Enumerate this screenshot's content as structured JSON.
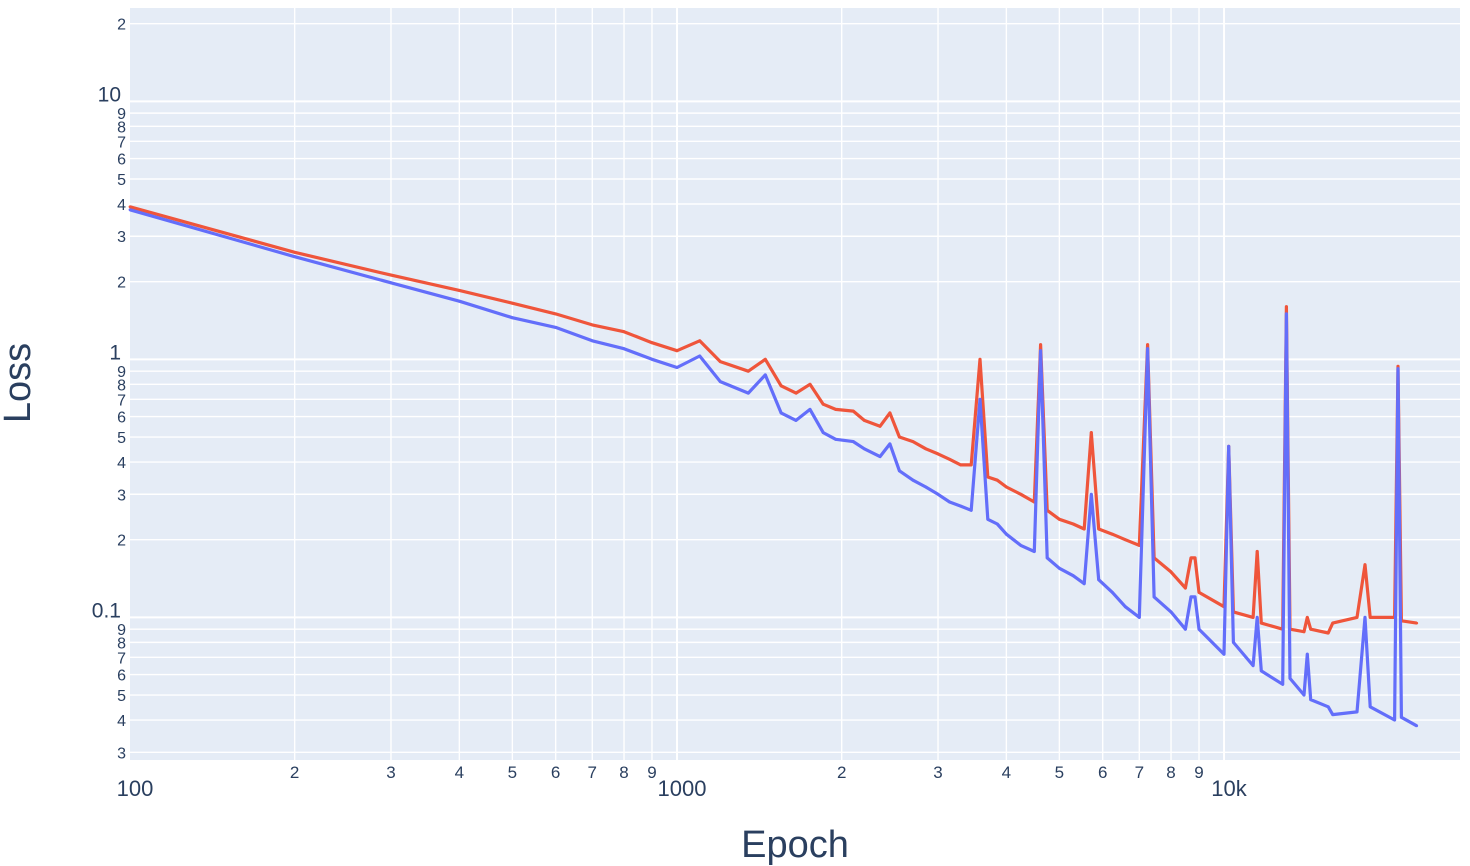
{
  "chart_data": {
    "type": "line",
    "title": "",
    "xlabel": "Epoch",
    "ylabel": "Loss",
    "x_scale": "log",
    "y_scale": "log",
    "xlim": [
      100,
      27000
    ],
    "ylim": [
      0.028,
      23
    ],
    "grid": true,
    "legend": "none",
    "plot_background": "#e5ecf6",
    "grid_color": "#ffffff",
    "x_ticks": {
      "major": [
        {
          "value": 100,
          "label": "100"
        },
        {
          "value": 1000,
          "label": "1000"
        },
        {
          "value": 10000,
          "label": "10k"
        }
      ],
      "minor": [
        {
          "value": 200,
          "label": "2"
        },
        {
          "value": 300,
          "label": "3"
        },
        {
          "value": 400,
          "label": "4"
        },
        {
          "value": 500,
          "label": "5"
        },
        {
          "value": 600,
          "label": "6"
        },
        {
          "value": 700,
          "label": "7"
        },
        {
          "value": 800,
          "label": "8"
        },
        {
          "value": 900,
          "label": "9"
        },
        {
          "value": 2000,
          "label": "2"
        },
        {
          "value": 3000,
          "label": "3"
        },
        {
          "value": 4000,
          "label": "4"
        },
        {
          "value": 5000,
          "label": "5"
        },
        {
          "value": 6000,
          "label": "6"
        },
        {
          "value": 7000,
          "label": "7"
        },
        {
          "value": 8000,
          "label": "8"
        },
        {
          "value": 9000,
          "label": "9"
        }
      ]
    },
    "y_ticks": {
      "major": [
        {
          "value": 0.1,
          "label": "0.1"
        },
        {
          "value": 1,
          "label": "1"
        },
        {
          "value": 10,
          "label": "10"
        }
      ],
      "minor": [
        {
          "value": 0.03,
          "label": "3"
        },
        {
          "value": 0.04,
          "label": "4"
        },
        {
          "value": 0.05,
          "label": "5"
        },
        {
          "value": 0.06,
          "label": "6"
        },
        {
          "value": 0.07,
          "label": "7"
        },
        {
          "value": 0.08,
          "label": "8"
        },
        {
          "value": 0.09,
          "label": "9"
        },
        {
          "value": 0.2,
          "label": "2"
        },
        {
          "value": 0.3,
          "label": "3"
        },
        {
          "value": 0.4,
          "label": "4"
        },
        {
          "value": 0.5,
          "label": "5"
        },
        {
          "value": 0.6,
          "label": "6"
        },
        {
          "value": 0.7,
          "label": "7"
        },
        {
          "value": 0.8,
          "label": "8"
        },
        {
          "value": 0.9,
          "label": "9"
        },
        {
          "value": 2,
          "label": "2"
        },
        {
          "value": 3,
          "label": "3"
        },
        {
          "value": 4,
          "label": "4"
        },
        {
          "value": 5,
          "label": "5"
        },
        {
          "value": 6,
          "label": "6"
        },
        {
          "value": 7,
          "label": "7"
        },
        {
          "value": 8,
          "label": "8"
        },
        {
          "value": 9,
          "label": "9"
        },
        {
          "value": 20,
          "label": "2"
        }
      ]
    },
    "series": [
      {
        "color": "#ef553b",
        "points": [
          [
            100,
            3.9
          ],
          [
            200,
            2.6
          ],
          [
            300,
            2.12
          ],
          [
            400,
            1.85
          ],
          [
            500,
            1.65
          ],
          [
            600,
            1.5
          ],
          [
            700,
            1.36
          ],
          [
            800,
            1.28
          ],
          [
            900,
            1.16
          ],
          [
            1000,
            1.08
          ],
          [
            1100,
            1.18
          ],
          [
            1200,
            0.98
          ],
          [
            1350,
            0.9
          ],
          [
            1450,
            1.0
          ],
          [
            1550,
            0.79
          ],
          [
            1650,
            0.74
          ],
          [
            1750,
            0.8
          ],
          [
            1850,
            0.67
          ],
          [
            1950,
            0.64
          ],
          [
            2100,
            0.63
          ],
          [
            2200,
            0.58
          ],
          [
            2350,
            0.55
          ],
          [
            2450,
            0.62
          ],
          [
            2550,
            0.5
          ],
          [
            2700,
            0.48
          ],
          [
            2850,
            0.45
          ],
          [
            3000,
            0.43
          ],
          [
            3150,
            0.41
          ],
          [
            3300,
            0.39
          ],
          [
            3450,
            0.39
          ],
          [
            3580,
            1.0
          ],
          [
            3700,
            0.35
          ],
          [
            3850,
            0.34
          ],
          [
            4000,
            0.32
          ],
          [
            4250,
            0.3
          ],
          [
            4500,
            0.28
          ],
          [
            4620,
            1.14
          ],
          [
            4750,
            0.26
          ],
          [
            5000,
            0.24
          ],
          [
            5300,
            0.23
          ],
          [
            5550,
            0.22
          ],
          [
            5720,
            0.52
          ],
          [
            5900,
            0.22
          ],
          [
            6250,
            0.21
          ],
          [
            6600,
            0.2
          ],
          [
            7000,
            0.19
          ],
          [
            7250,
            1.14
          ],
          [
            7450,
            0.17
          ],
          [
            8000,
            0.15
          ],
          [
            8500,
            0.13
          ],
          [
            8700,
            0.17
          ],
          [
            8850,
            0.17
          ],
          [
            9000,
            0.125
          ],
          [
            10000,
            0.11
          ],
          [
            10200,
            0.46
          ],
          [
            10400,
            0.105
          ],
          [
            11300,
            0.1
          ],
          [
            11500,
            0.18
          ],
          [
            11700,
            0.095
          ],
          [
            12800,
            0.09
          ],
          [
            13000,
            1.6
          ],
          [
            13200,
            0.09
          ],
          [
            14000,
            0.088
          ],
          [
            14200,
            0.1
          ],
          [
            14400,
            0.09
          ],
          [
            15500,
            0.087
          ],
          [
            15800,
            0.095
          ],
          [
            17500,
            0.1
          ],
          [
            18100,
            0.16
          ],
          [
            18500,
            0.1
          ],
          [
            20500,
            0.1
          ],
          [
            20800,
            0.94
          ],
          [
            21100,
            0.097
          ],
          [
            22500,
            0.095
          ]
        ]
      },
      {
        "color": "#636efa",
        "points": [
          [
            100,
            3.8
          ],
          [
            200,
            2.5
          ],
          [
            300,
            1.98
          ],
          [
            400,
            1.68
          ],
          [
            500,
            1.45
          ],
          [
            600,
            1.33
          ],
          [
            700,
            1.18
          ],
          [
            800,
            1.1
          ],
          [
            900,
            1.0
          ],
          [
            1000,
            0.93
          ],
          [
            1100,
            1.03
          ],
          [
            1200,
            0.82
          ],
          [
            1350,
            0.74
          ],
          [
            1450,
            0.87
          ],
          [
            1550,
            0.62
          ],
          [
            1650,
            0.58
          ],
          [
            1750,
            0.64
          ],
          [
            1850,
            0.52
          ],
          [
            1950,
            0.49
          ],
          [
            2100,
            0.48
          ],
          [
            2200,
            0.45
          ],
          [
            2350,
            0.42
          ],
          [
            2450,
            0.47
          ],
          [
            2550,
            0.37
          ],
          [
            2700,
            0.34
          ],
          [
            2850,
            0.32
          ],
          [
            3000,
            0.3
          ],
          [
            3150,
            0.28
          ],
          [
            3300,
            0.27
          ],
          [
            3450,
            0.26
          ],
          [
            3580,
            0.7
          ],
          [
            3700,
            0.24
          ],
          [
            3850,
            0.23
          ],
          [
            4000,
            0.21
          ],
          [
            4250,
            0.19
          ],
          [
            4500,
            0.18
          ],
          [
            4620,
            1.08
          ],
          [
            4750,
            0.17
          ],
          [
            5000,
            0.155
          ],
          [
            5300,
            0.145
          ],
          [
            5550,
            0.135
          ],
          [
            5720,
            0.3
          ],
          [
            5900,
            0.14
          ],
          [
            6250,
            0.125
          ],
          [
            6600,
            0.11
          ],
          [
            7000,
            0.1
          ],
          [
            7250,
            1.1
          ],
          [
            7450,
            0.12
          ],
          [
            8000,
            0.105
          ],
          [
            8500,
            0.09
          ],
          [
            8700,
            0.12
          ],
          [
            8850,
            0.12
          ],
          [
            9000,
            0.09
          ],
          [
            10000,
            0.072
          ],
          [
            10200,
            0.46
          ],
          [
            10400,
            0.08
          ],
          [
            11300,
            0.065
          ],
          [
            11500,
            0.1
          ],
          [
            11700,
            0.062
          ],
          [
            12800,
            0.055
          ],
          [
            13000,
            1.5
          ],
          [
            13200,
            0.058
          ],
          [
            14000,
            0.05
          ],
          [
            14200,
            0.072
          ],
          [
            14400,
            0.048
          ],
          [
            15500,
            0.045
          ],
          [
            15800,
            0.042
          ],
          [
            17500,
            0.043
          ],
          [
            18100,
            0.1
          ],
          [
            18500,
            0.045
          ],
          [
            20500,
            0.04
          ],
          [
            20800,
            0.92
          ],
          [
            21100,
            0.041
          ],
          [
            22500,
            0.038
          ]
        ]
      }
    ]
  }
}
